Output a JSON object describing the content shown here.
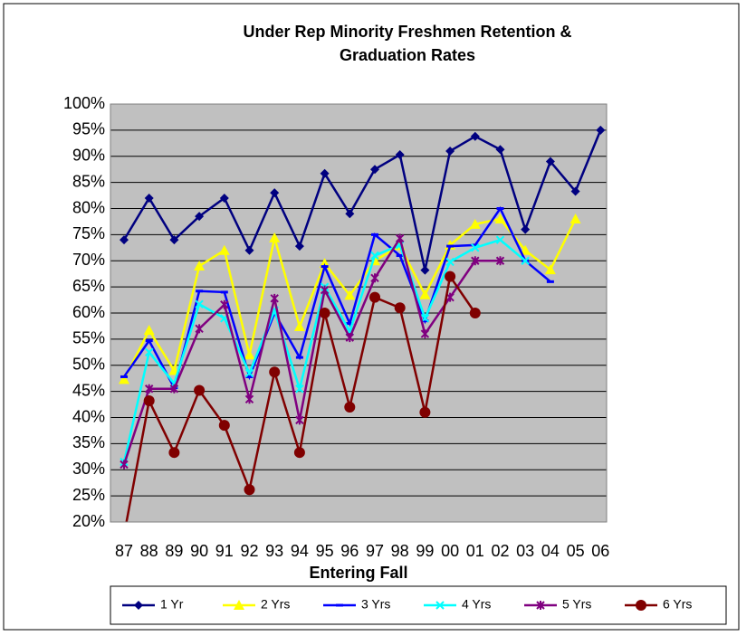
{
  "chart_data": {
    "type": "line",
    "title": "Under Rep Minority Freshmen Retention & Graduation Rates",
    "x_label": "Entering Fall",
    "categories": [
      "87",
      "88",
      "89",
      "90",
      "91",
      "92",
      "93",
      "94",
      "95",
      "96",
      "97",
      "98",
      "99",
      "00",
      "01",
      "02",
      "03",
      "04",
      "05",
      "06"
    ],
    "ylim": [
      20,
      100
    ],
    "yticks": [
      {
        "value": 20,
        "label": "20%"
      },
      {
        "value": 25,
        "label": "25%"
      },
      {
        "value": 30,
        "label": "30%"
      },
      {
        "value": 35,
        "label": "35%"
      },
      {
        "value": 40,
        "label": "40%"
      },
      {
        "value": 45,
        "label": "45%"
      },
      {
        "value": 50,
        "label": "50%"
      },
      {
        "value": 55,
        "label": "55%"
      },
      {
        "value": 60,
        "label": "60%"
      },
      {
        "value": 65,
        "label": "65%"
      },
      {
        "value": 70,
        "label": "70%"
      },
      {
        "value": 75,
        "label": "75%"
      },
      {
        "value": 80,
        "label": "80%"
      },
      {
        "value": 85,
        "label": "85%"
      },
      {
        "value": 90,
        "label": "90%"
      },
      {
        "value": 95,
        "label": "95%"
      },
      {
        "value": 100,
        "label": "100%"
      }
    ],
    "grid": true,
    "legend": "bottom",
    "series": [
      {
        "name": "1 Yr",
        "color": "#000080",
        "marker": "diamond",
        "values": [
          74,
          82,
          74,
          78.5,
          82,
          72,
          83,
          72.8,
          86.7,
          79,
          87.5,
          90.3,
          68.2,
          91,
          93.8,
          91.3,
          76,
          89,
          83.3,
          95
        ]
      },
      {
        "name": "2 Yrs",
        "color": "#ffff00",
        "marker": "triangle",
        "values": [
          47.3,
          56.7,
          49,
          69,
          72,
          52,
          74.4,
          57.4,
          69.5,
          63.4,
          70,
          72.9,
          63.5,
          73,
          77,
          78,
          72,
          68.3,
          78,
          null
        ]
      },
      {
        "name": "3 Yrs",
        "color": "#0000ff",
        "marker": "dash",
        "values": [
          47.8,
          54.7,
          45.7,
          64.2,
          64,
          47.8,
          60,
          51.5,
          68.9,
          58,
          75,
          71,
          58.5,
          72.8,
          73,
          80,
          70,
          66,
          null,
          null
        ]
      },
      {
        "name": "4 Yrs",
        "color": "#00ffff",
        "marker": "x",
        "values": [
          31.5,
          52.5,
          46.5,
          61.7,
          59,
          48.5,
          60.5,
          45.5,
          65,
          56.5,
          71,
          73,
          59,
          69.8,
          72.5,
          74,
          70,
          null,
          null,
          null
        ]
      },
      {
        "name": "5 Yrs",
        "color": "#800080",
        "marker": "star",
        "values": [
          31,
          45.5,
          45.5,
          57,
          61.6,
          43.5,
          62.8,
          39.5,
          64.4,
          55.3,
          66.7,
          74.3,
          56,
          63,
          70,
          70,
          null,
          null,
          null,
          null
        ]
      },
      {
        "name": "6 Yrs",
        "color": "#800000",
        "marker": "circle",
        "values": [
          17.5,
          43.2,
          33.3,
          45.2,
          38.5,
          26.2,
          48.7,
          33.3,
          60,
          42,
          63,
          61,
          41,
          67,
          60,
          null,
          null,
          null,
          null,
          null
        ]
      }
    ]
  }
}
